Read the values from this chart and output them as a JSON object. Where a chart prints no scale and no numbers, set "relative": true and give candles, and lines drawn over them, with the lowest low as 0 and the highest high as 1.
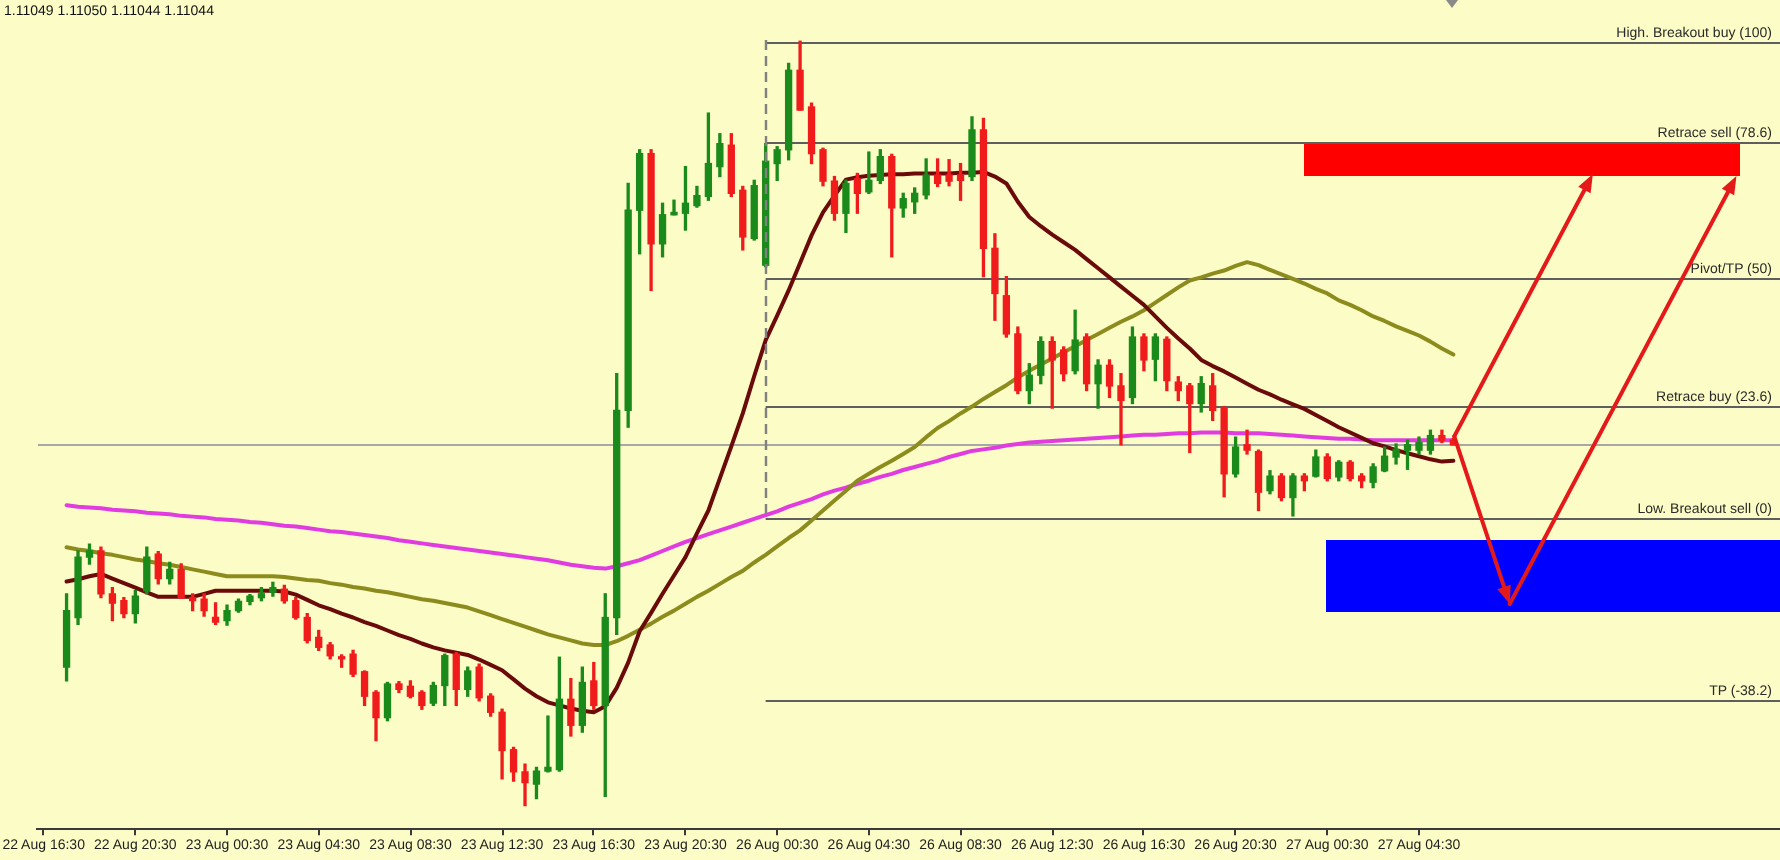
{
  "chart_data": {
    "type": "candlestick",
    "title": "1.11049 1.11050 1.11044 1.11044",
    "relative": true,
    "marker": "none",
    "line_style": "solid",
    "categories": [
      "22 Aug 16:30",
      null,
      null,
      null,
      null,
      null,
      null,
      null,
      "22 Aug 20:30",
      null,
      null,
      null,
      null,
      null,
      null,
      null,
      "23 Aug 00:30",
      null,
      null,
      null,
      null,
      null,
      null,
      null,
      "23 Aug 04:30",
      null,
      null,
      null,
      null,
      null,
      null,
      null,
      "23 Aug 08:30",
      null,
      null,
      null,
      null,
      null,
      null,
      null,
      "23 Aug 12:30",
      null,
      null,
      null,
      null,
      null,
      null,
      null,
      "23 Aug 16:30",
      null,
      null,
      null,
      null,
      null,
      null,
      null,
      "23 Aug 20:30",
      null,
      null,
      null,
      null,
      null,
      null,
      null,
      "26 Aug 00:30",
      null,
      null,
      null,
      null,
      null,
      null,
      null,
      "26 Aug 04:30",
      null,
      null,
      null,
      null,
      null,
      null,
      null,
      "26 Aug 08:30",
      null,
      null,
      null,
      null,
      null,
      null,
      null,
      "26 Aug 12:30",
      null,
      null,
      null,
      null,
      null,
      null,
      null,
      "26 Aug 16:30",
      null,
      null,
      null,
      null,
      null,
      null,
      null,
      "26 Aug 20:30",
      null,
      null,
      null,
      null,
      null,
      null,
      null,
      "27 Aug 00:30",
      null,
      null,
      null,
      null,
      null,
      null,
      null,
      "27 Aug 04:30",
      null,
      null,
      null,
      null,
      null,
      null,
      null,
      null,
      null,
      null,
      null,
      null,
      null,
      null,
      null,
      null,
      null,
      null,
      null,
      null,
      null,
      null,
      null,
      null,
      null,
      null,
      null,
      null,
      null,
      null,
      null
    ],
    "ohlc": [
      null,
      null,
      [
        0.181,
        0.277,
        0.163,
        0.255
      ],
      [
        0.246,
        0.333,
        0.237,
        0.325
      ],
      [
        0.325,
        0.342,
        0.316,
        0.333
      ],
      [
        0.333,
        0.338,
        0.272,
        0.277
      ],
      [
        0.277,
        0.285,
        0.242,
        0.265
      ],
      [
        0.268,
        0.272,
        0.246,
        0.251
      ],
      [
        0.251,
        0.281,
        0.239,
        0.274
      ],
      [
        0.281,
        0.338,
        0.277,
        0.325
      ],
      [
        0.329,
        0.332,
        0.29,
        0.297
      ],
      [
        0.297,
        0.318,
        0.29,
        0.309
      ],
      [
        0.309,
        0.316,
        0.271,
        0.272
      ],
      [
        0.272,
        0.277,
        0.255,
        0.268
      ],
      [
        0.27,
        0.277,
        0.248,
        0.255
      ],
      [
        0.246,
        0.265,
        0.237,
        0.24
      ],
      [
        0.242,
        0.262,
        0.236,
        0.255
      ],
      [
        0.255,
        0.27,
        0.253,
        0.267
      ],
      [
        0.267,
        0.276,
        0.263,
        0.274
      ],
      [
        0.272,
        0.285,
        0.268,
        0.277
      ],
      [
        0.279,
        0.292,
        0.274,
        0.285
      ],
      [
        0.283,
        0.288,
        0.265,
        0.268
      ],
      [
        0.268,
        0.272,
        0.244,
        0.246
      ],
      [
        0.246,
        0.251,
        0.213,
        0.216
      ],
      [
        0.22,
        0.229,
        0.203,
        0.207
      ],
      [
        0.21,
        0.213,
        0.192,
        0.196
      ],
      [
        0.194,
        0.197,
        0.181,
        0.192
      ],
      [
        0.198,
        0.203,
        0.169,
        0.172
      ],
      [
        0.175,
        0.176,
        0.131,
        0.143
      ],
      [
        0.148,
        0.15,
        0.085,
        0.115
      ],
      [
        0.115,
        0.161,
        0.111,
        0.159
      ],
      [
        0.159,
        0.162,
        0.148,
        0.152
      ],
      [
        0.156,
        0.163,
        0.141,
        0.143
      ],
      [
        0.148,
        0.15,
        0.126,
        0.131
      ],
      [
        0.134,
        0.161,
        0.131,
        0.157
      ],
      [
        0.157,
        0.198,
        0.131,
        0.196
      ],
      [
        0.198,
        0.2,
        0.131,
        0.152
      ],
      [
        0.152,
        0.181,
        0.143,
        0.176
      ],
      [
        0.181,
        0.185,
        0.137,
        0.141
      ],
      [
        0.143,
        0.146,
        0.117,
        0.122
      ],
      [
        0.122,
        0.126,
        0.035,
        0.072
      ],
      [
        0.073,
        0.076,
        0.032,
        0.044
      ],
      [
        0.044,
        0.054,
        0,
        0.03
      ],
      [
        0.028,
        0.05,
        0.009,
        0.045
      ],
      [
        0.045,
        0.117,
        0.044,
        0.05
      ],
      [
        0.047,
        0.194,
        0.045,
        0.139
      ],
      [
        0.139,
        0.166,
        0.091,
        0.105
      ],
      [
        0.105,
        0.181,
        0.096,
        0.161
      ],
      [
        0.163,
        0.187,
        0.126,
        0.131
      ],
      [
        0.131,
        0.277,
        0.012,
        0.246
      ],
      [
        0.246,
        0.565,
        0.224,
        0.517
      ],
      [
        0.517,
        0.814,
        0.495,
        0.779
      ],
      [
        0.779,
        0.858,
        0.722,
        0.853
      ],
      [
        0.853,
        0.858,
        0.674,
        0.735
      ],
      [
        0.735,
        0.788,
        0.718,
        0.773
      ],
      [
        0.773,
        0.792,
        0.773,
        0.776
      ],
      [
        0.775,
        0.836,
        0.753,
        0.788
      ],
      [
        0.785,
        0.81,
        0.783,
        0.798
      ],
      [
        0.797,
        0.906,
        0.792,
        0.84
      ],
      [
        0.836,
        0.879,
        0.823,
        0.866
      ],
      [
        0.864,
        0.879,
        0.797,
        0.801
      ],
      [
        0.805,
        0.81,
        0.727,
        0.744
      ],
      [
        0.742,
        0.818,
        0.74,
        0.811
      ],
      [
        0.707,
        0.866,
        0.705,
        0.843
      ],
      [
        0.84,
        0.862,
        0.818,
        0.858
      ],
      [
        0.858,
        0.971,
        0.845,
        0.962
      ],
      [
        0.962,
        1,
        0.91,
        0.91
      ],
      [
        0.914,
        0.919,
        0.84,
        0.853
      ],
      [
        0.858,
        0.86,
        0.811,
        0.817
      ],
      [
        0.817,
        0.823,
        0.766,
        0.775
      ],
      [
        0.775,
        0.818,
        0.75,
        0.814
      ],
      [
        0.82,
        0.827,
        0.775,
        0.801
      ],
      [
        0.803,
        0.855,
        0.801,
        0.818
      ],
      [
        0.818,
        0.858,
        0.814,
        0.849
      ],
      [
        0.849,
        0.852,
        0.718,
        0.782
      ],
      [
        0.782,
        0.801,
        0.77,
        0.794
      ],
      [
        0.79,
        0.808,
        0.775,
        0.801
      ],
      [
        0.799,
        0.846,
        0.794,
        0.825
      ],
      [
        0.825,
        0.846,
        0.81,
        0.814
      ],
      [
        0.825,
        0.845,
        0.811,
        0.817
      ],
      [
        0.825,
        0.84,
        0.792,
        0.818
      ],
      [
        0.823,
        0.901,
        0.818,
        0.884
      ],
      [
        0.884,
        0.899,
        0.692,
        0.729
      ],
      [
        0.729,
        0.748,
        0.635,
        0.67
      ],
      [
        0.667,
        0.692,
        0.613,
        0.617
      ],
      [
        0.617,
        0.626,
        0.539,
        0.543
      ],
      [
        0.543,
        0.578,
        0.526,
        0.563
      ],
      [
        0.563,
        0.613,
        0.552,
        0.607
      ],
      [
        0.607,
        0.613,
        0.52,
        0.583
      ],
      [
        0.596,
        0.6,
        0.556,
        0.565
      ],
      [
        0.569,
        0.648,
        0.565,
        0.609
      ],
      [
        0.613,
        0.617,
        0.543,
        0.552
      ],
      [
        0.552,
        0.583,
        0.52,
        0.576
      ],
      [
        0.576,
        0.583,
        0.534,
        0.549
      ],
      [
        0.549,
        0.565,
        0.472,
        0.53
      ],
      [
        0.534,
        0.626,
        0.526,
        0.613
      ],
      [
        0.613,
        0.617,
        0.569,
        0.583
      ],
      [
        0.584,
        0.617,
        0.556,
        0.613
      ],
      [
        0.61,
        0.613,
        0.543,
        0.556
      ],
      [
        0.554,
        0.561,
        0.53,
        0.543
      ],
      [
        0.549,
        0.552,
        0.462,
        0.526
      ],
      [
        0.526,
        0.561,
        0.515,
        0.552
      ],
      [
        0.549,
        0.565,
        0.504,
        0.517
      ],
      [
        0.52,
        0.522,
        0.404,
        0.434
      ],
      [
        0.434,
        0.482,
        0.43,
        0.469
      ],
      [
        0.472,
        0.491,
        0.46,
        0.465
      ],
      [
        0.463,
        0.465,
        0.386,
        0.41
      ],
      [
        0.412,
        0.438,
        0.408,
        0.431
      ],
      [
        0.431,
        0.434,
        0.399,
        0.403
      ],
      [
        0.403,
        0.434,
        0.379,
        0.431
      ],
      [
        0.431,
        0.434,
        0.412,
        0.425
      ],
      [
        0.431,
        0.465,
        0.43,
        0.456
      ],
      [
        0.456,
        0.46,
        0.425,
        0.428
      ],
      [
        0.43,
        0.451,
        0.425,
        0.449
      ],
      [
        0.449,
        0.451,
        0.425,
        0.428
      ],
      [
        0.431,
        0.434,
        0.416,
        0.425
      ],
      [
        0.423,
        0.447,
        0.416,
        0.443
      ],
      [
        0.438,
        0.469,
        0.437,
        0.457
      ],
      [
        0.456,
        0.473,
        0.447,
        0.466
      ],
      [
        0.465,
        0.478,
        0.44,
        0.472
      ],
      [
        0.465,
        0.482,
        0.46,
        0.475
      ],
      [
        0.465,
        0.491,
        0.46,
        0.484
      ],
      [
        0.484,
        0.491,
        0.475,
        0.478
      ],
      [
        0.478,
        0.48,
        0.472,
        0.472
      ],
      null,
      null,
      null,
      null,
      null,
      null,
      null,
      null,
      null,
      null,
      null,
      null,
      null,
      null,
      null,
      null,
      null,
      null,
      null,
      null,
      null,
      null,
      null,
      null,
      null,
      null,
      null,
      null
    ],
    "colors": [
      null,
      null,
      "#1a8a1a",
      "#1a8a1a",
      "#1a8a1a",
      "#f01c1c",
      "#f01c1c",
      "#f01c1c",
      "#1a8a1a",
      "#1a8a1a",
      "#f01c1c",
      "#1a8a1a",
      "#f01c1c",
      "#f01c1c",
      "#f01c1c",
      "#f01c1c",
      "#1a8a1a",
      "#1a8a1a",
      "#1a8a1a",
      "#1a8a1a",
      "#1a8a1a",
      "#f01c1c",
      "#f01c1c",
      "#f01c1c",
      "#f01c1c",
      "#f01c1c",
      "#f01c1c",
      "#f01c1c",
      "#f01c1c",
      "#f01c1c",
      "#1a8a1a",
      "#f01c1c",
      "#f01c1c",
      "#f01c1c",
      "#1a8a1a",
      "#1a8a1a",
      "#f01c1c",
      "#1a8a1a",
      "#f01c1c",
      "#f01c1c",
      "#f01c1c",
      "#f01c1c",
      "#f01c1c",
      "#1a8a1a",
      "#1a8a1a",
      "#1a8a1a",
      "#f01c1c",
      "#1a8a1a",
      "#f01c1c",
      "#1a8a1a",
      "#1a8a1a",
      "#1a8a1a",
      "#1a8a1a",
      "#f01c1c",
      "#1a8a1a",
      "#1a8a1a",
      "#1a8a1a",
      "#1a8a1a",
      "#1a8a1a",
      "#1a8a1a",
      "#f01c1c",
      "#f01c1c",
      "#1a8a1a",
      "#1a8a1a",
      "#1a8a1a",
      "#1a8a1a",
      "#f01c1c",
      "#f01c1c",
      "#f01c1c",
      "#f01c1c",
      "#1a8a1a",
      "#f01c1c",
      "#1a8a1a",
      "#1a8a1a",
      "#f01c1c",
      "#1a8a1a",
      "#1a8a1a",
      "#1a8a1a",
      "#f01c1c",
      "#f01c1c",
      "#f01c1c",
      "#1a8a1a",
      "#f01c1c",
      "#f01c1c",
      "#f01c1c",
      "#f01c1c",
      "#1a8a1a",
      "#1a8a1a",
      "#f01c1c",
      "#f01c1c",
      "#1a8a1a",
      "#f01c1c",
      "#1a8a1a",
      "#f01c1c",
      "#f01c1c",
      "#1a8a1a",
      "#f01c1c",
      "#1a8a1a",
      "#f01c1c",
      "#f01c1c",
      "#f01c1c",
      "#1a8a1a",
      "#f01c1c",
      "#f01c1c",
      "#1a8a1a",
      "#f01c1c",
      "#f01c1c",
      "#1a8a1a",
      "#f01c1c",
      "#1a8a1a",
      "#f01c1c",
      "#1a8a1a",
      "#f01c1c",
      "#1a8a1a",
      "#f01c1c",
      "#f01c1c",
      "#1a8a1a",
      "#1a8a1a",
      "#1a8a1a",
      "#1a8a1a",
      "#1a8a1a",
      "#1a8a1a",
      "#f01c1c",
      "#f01c1c",
      null,
      null,
      null,
      null,
      null,
      null,
      null,
      null,
      null,
      null,
      null,
      null,
      null,
      null,
      null,
      null,
      null,
      null,
      null,
      null,
      null,
      null,
      null,
      null,
      null,
      null,
      null,
      null
    ],
    "series": [
      {
        "type": "line",
        "color": "#6b0a0a",
        "values": [
          null,
          null,
          0.293,
          0.296,
          0.3,
          0.303,
          0.297,
          0.291,
          0.285,
          0.279,
          0.273,
          0.273,
          0.273,
          0.273,
          0.277,
          0.281,
          0.281,
          0.281,
          0.281,
          0.281,
          0.281,
          0.28,
          0.276,
          0.269,
          0.262,
          0.257,
          0.251,
          0.246,
          0.24,
          0.235,
          0.229,
          0.223,
          0.218,
          0.212,
          0.207,
          0.203,
          0.2,
          0.197,
          0.191,
          0.184,
          0.177,
          0.165,
          0.153,
          0.143,
          0.135,
          0.131,
          0.127,
          0.124,
          0.122,
          0.13,
          0.154,
          0.187,
          0.228,
          0.252,
          0.277,
          0.301,
          0.325,
          0.356,
          0.386,
          0.428,
          0.47,
          0.513,
          0.562,
          0.609,
          0.641,
          0.674,
          0.71,
          0.746,
          0.776,
          0.798,
          0.819,
          0.822,
          0.824,
          0.825,
          0.826,
          0.826,
          0.827,
          0.827,
          0.827,
          0.827,
          0.828,
          0.828,
          0.829,
          0.823,
          0.814,
          0.79,
          0.77,
          0.758,
          0.747,
          0.737,
          0.727,
          0.715,
          0.703,
          0.691,
          0.679,
          0.667,
          0.655,
          0.64,
          0.625,
          0.611,
          0.598,
          0.583,
          0.575,
          0.568,
          0.56,
          0.552,
          0.544,
          0.538,
          0.531,
          0.525,
          0.519,
          0.511,
          0.503,
          0.495,
          0.488,
          0.481,
          0.474,
          0.47,
          0.465,
          0.461,
          0.457,
          0.453,
          0.45,
          0.451,
          null,
          null,
          null,
          null,
          null,
          null,
          null,
          null,
          null,
          null,
          null,
          null,
          null,
          null,
          null,
          null,
          null,
          null,
          null,
          null,
          null,
          null,
          null,
          null,
          null,
          null,
          null,
          null
        ]
      },
      {
        "type": "line",
        "color": "#8c8c1e",
        "values": [
          null,
          null,
          0.338,
          0.335,
          0.333,
          0.33,
          0.328,
          0.325,
          0.322,
          0.32,
          0.317,
          0.315,
          0.312,
          0.309,
          0.306,
          0.303,
          0.3,
          0.3,
          0.3,
          0.3,
          0.3,
          0.299,
          0.297,
          0.295,
          0.294,
          0.291,
          0.289,
          0.286,
          0.284,
          0.281,
          0.279,
          0.276,
          0.273,
          0.27,
          0.268,
          0.265,
          0.262,
          0.259,
          0.254,
          0.249,
          0.244,
          0.239,
          0.234,
          0.229,
          0.224,
          0.22,
          0.216,
          0.212,
          0.21,
          0.21,
          0.215,
          0.222,
          0.23,
          0.238,
          0.247,
          0.255,
          0.264,
          0.273,
          0.281,
          0.29,
          0.299,
          0.307,
          0.318,
          0.328,
          0.339,
          0.35,
          0.36,
          0.373,
          0.386,
          0.399,
          0.412,
          0.425,
          0.434,
          0.443,
          0.451,
          0.46,
          0.469,
          0.482,
          0.494,
          0.503,
          0.513,
          0.522,
          0.532,
          0.541,
          0.55,
          0.56,
          0.569,
          0.577,
          0.585,
          0.593,
          0.601,
          0.609,
          0.617,
          0.625,
          0.633,
          0.64,
          0.648,
          0.658,
          0.668,
          0.678,
          0.687,
          0.691,
          0.696,
          0.7,
          0.706,
          0.711,
          0.707,
          0.701,
          0.695,
          0.689,
          0.683,
          0.676,
          0.67,
          0.661,
          0.655,
          0.648,
          0.64,
          0.634,
          0.627,
          0.621,
          0.615,
          0.607,
          0.598,
          0.59,
          null,
          null,
          null,
          null,
          null,
          null,
          null,
          null,
          null,
          null,
          null,
          null,
          null,
          null,
          null,
          null,
          null,
          null,
          null,
          null,
          null,
          null,
          null,
          null,
          null,
          null,
          null,
          null
        ]
      },
      {
        "type": "line",
        "color": "#e03ce0",
        "values": [
          null,
          null,
          0.393,
          0.391,
          0.39,
          0.389,
          0.387,
          0.386,
          0.385,
          0.383,
          0.382,
          0.381,
          0.379,
          0.378,
          0.377,
          0.375,
          0.374,
          0.373,
          0.371,
          0.37,
          0.368,
          0.366,
          0.365,
          0.363,
          0.361,
          0.359,
          0.358,
          0.356,
          0.354,
          0.352,
          0.35,
          0.347,
          0.345,
          0.343,
          0.341,
          0.339,
          0.337,
          0.335,
          0.333,
          0.331,
          0.329,
          0.327,
          0.325,
          0.323,
          0.321,
          0.318,
          0.315,
          0.313,
          0.311,
          0.31,
          0.313,
          0.317,
          0.321,
          0.327,
          0.333,
          0.339,
          0.345,
          0.35,
          0.355,
          0.36,
          0.365,
          0.37,
          0.375,
          0.38,
          0.385,
          0.391,
          0.396,
          0.401,
          0.407,
          0.412,
          0.416,
          0.421,
          0.425,
          0.43,
          0.434,
          0.439,
          0.443,
          0.447,
          0.451,
          0.456,
          0.46,
          0.464,
          0.466,
          0.468,
          0.471,
          0.473,
          0.475,
          0.476,
          0.477,
          0.478,
          0.479,
          0.48,
          0.481,
          0.482,
          0.483,
          0.484,
          0.485,
          0.485,
          0.486,
          0.487,
          0.487,
          0.488,
          0.488,
          0.488,
          0.487,
          0.487,
          0.487,
          0.486,
          0.485,
          0.484,
          0.483,
          0.482,
          0.481,
          0.48,
          0.48,
          0.479,
          0.478,
          0.478,
          0.478,
          0.478,
          0.478,
          0.478,
          0.478,
          0.478,
          null,
          null,
          null,
          null,
          null,
          null,
          null,
          null,
          null,
          null,
          null,
          null,
          null,
          null,
          null,
          null,
          null,
          null,
          null,
          null,
          null,
          null,
          null,
          null,
          null,
          null,
          null,
          null
        ]
      }
    ],
    "ref_lines": [
      {
        "axis": "y",
        "value": 1,
        "label": "High. Breakout buy (100)",
        "color": "#5e5e5e"
      },
      {
        "axis": "y",
        "value": 0.867,
        "label": "Retrace sell (78.6)",
        "color": "#5e5e5e"
      },
      {
        "axis": "y",
        "value": 0.689,
        "label": "Pivot/TP (50)",
        "color": "#5e5e5e"
      },
      {
        "axis": "y",
        "value": 0.524,
        "label": "Retrace buy (23.6)",
        "color": "#5e5e5e"
      },
      {
        "axis": "y",
        "value": 0.377,
        "label": "Low. Breakout sell (0)",
        "color": "#5e5e5e"
      },
      {
        "axis": "y",
        "value": 0.139,
        "label": "TP (-38.2)",
        "color": "#5e5e5e"
      },
      {
        "axis": "y",
        "value": 0.472,
        "color": "#a8a8a8"
      }
    ]
  }
}
